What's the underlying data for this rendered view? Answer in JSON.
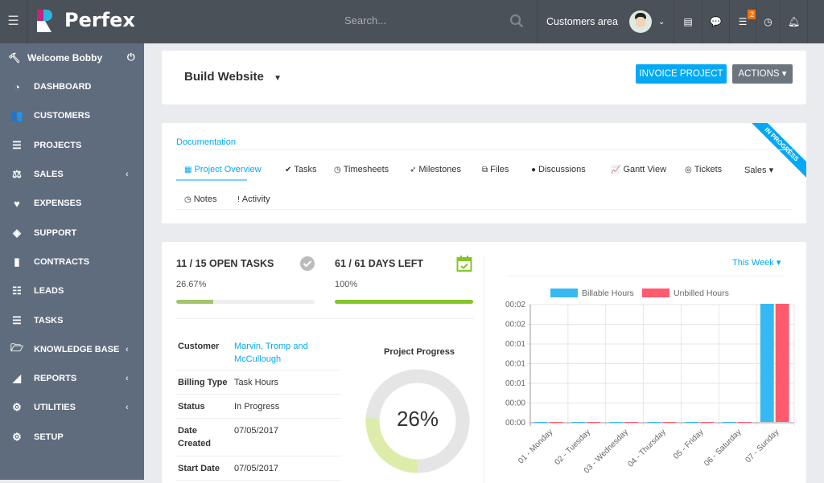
{
  "topbar": {
    "brand": "Perfex",
    "search_placeholder": "Search...",
    "customers_area": "Customers area",
    "notifications_count": "2"
  },
  "sidebar": {
    "welcome": "Welcome Bobby",
    "items": [
      {
        "label": "DASHBOARD",
        "icon": "dashboard-icon",
        "glyph": "◔",
        "submenu": false
      },
      {
        "label": "CUSTOMERS",
        "icon": "users-icon",
        "glyph": "👥",
        "submenu": false
      },
      {
        "label": "PROJECTS",
        "icon": "bars-icon",
        "glyph": "☰",
        "submenu": false
      },
      {
        "label": "SALES",
        "icon": "balance-scale-icon",
        "glyph": "⚖",
        "submenu": true
      },
      {
        "label": "EXPENSES",
        "icon": "heartbeat-icon",
        "glyph": "♥",
        "submenu": false
      },
      {
        "label": "SUPPORT",
        "icon": "ticket-icon",
        "glyph": "◈",
        "submenu": false
      },
      {
        "label": "CONTRACTS",
        "icon": "file-icon",
        "glyph": "▮",
        "submenu": false
      },
      {
        "label": "LEADS",
        "icon": "leads-icon",
        "glyph": "☷",
        "submenu": false
      },
      {
        "label": "TASKS",
        "icon": "tasks-icon",
        "glyph": "☰",
        "submenu": false
      },
      {
        "label": "KNOWLEDGE BASE",
        "icon": "folder-open-icon",
        "glyph": "🗁",
        "submenu": true
      },
      {
        "label": "REPORTS",
        "icon": "area-chart-icon",
        "glyph": "◢",
        "submenu": true
      },
      {
        "label": "UTILITIES",
        "icon": "cogs-icon",
        "glyph": "⚙",
        "submenu": true
      },
      {
        "label": "SETUP",
        "icon": "cog-icon",
        "glyph": "⚙",
        "submenu": false
      }
    ]
  },
  "project": {
    "name": "Build Website",
    "invoice_label": "INVOICE PROJECT",
    "actions_label": "ACTIONS",
    "status_ribbon": "IN PROGRESS"
  },
  "tabs": {
    "group": "Documentation",
    "items": [
      {
        "label": "Project Overview",
        "glyph": "▦",
        "active": true
      },
      {
        "label": "Tasks",
        "glyph": "✔"
      },
      {
        "label": "Timesheets",
        "glyph": "◷"
      },
      {
        "label": "Milestones",
        "glyph": "➶"
      },
      {
        "label": "Files",
        "glyph": "⧉"
      },
      {
        "label": "Discussions",
        "glyph": "●"
      },
      {
        "label": "Gantt View",
        "glyph": "📈"
      },
      {
        "label": "Tickets",
        "glyph": "◎"
      },
      {
        "label": "Sales ▾",
        "glyph": ""
      },
      {
        "label": "Notes",
        "glyph": "◷"
      },
      {
        "label": "Activity",
        "glyph": "!"
      }
    ]
  },
  "stats": {
    "tasks_title": "11 / 15 OPEN TASKS",
    "tasks_percent": "26.67%",
    "tasks_fraction": 0.2667,
    "days_title": "61 / 61 DAYS LEFT",
    "days_percent": "100%",
    "days_fraction": 1.0
  },
  "details": [
    {
      "label": "Customer",
      "value": "Marvin, Tromp and McCullough",
      "link": true
    },
    {
      "label": "Billing Type",
      "value": "Task Hours"
    },
    {
      "label": "Status",
      "value": "In Progress"
    },
    {
      "label": "Date Created",
      "value": "07/05/2017"
    },
    {
      "label": "Start Date",
      "value": "07/05/2017"
    }
  ],
  "progress": {
    "title": "Project Progress",
    "value": "26%",
    "fraction": 0.26
  },
  "colors": {
    "accent": "#03a9f4",
    "green": "#84c529",
    "billable": "#36b9f2",
    "unbilled": "#ff5a6e"
  },
  "chart_filter": "This Week",
  "chart_data": {
    "type": "bar",
    "categories": [
      "01 - Monday",
      "02 - Tuesday",
      "03 - Wednesday",
      "04 - Thursday",
      "05 - Friday",
      "06 - Saturday",
      "07 - Sunday"
    ],
    "series": [
      {
        "name": "Billable Hours",
        "values": [
          0,
          0,
          0,
          0,
          0,
          0,
          1
        ]
      },
      {
        "name": "Unbilled Hours",
        "values": [
          0,
          0,
          0,
          0,
          0,
          0,
          1
        ]
      }
    ],
    "ytick_labels": [
      "00:02",
      "00:02",
      "00:01",
      "00:01",
      "00:01",
      "00:00",
      "00:00"
    ],
    "ylim": [
      0,
      1
    ],
    "legend": "top",
    "grid": true
  }
}
